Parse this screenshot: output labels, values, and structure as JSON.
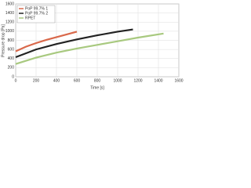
{
  "chart_data": {
    "type": "line",
    "xlabel": "Time [s]",
    "ylabel": "Pressure drop [Pa]",
    "xlim": [
      0,
      1600
    ],
    "xticks": [
      0,
      200,
      400,
      600,
      800,
      1000,
      1200,
      1400,
      1600
    ],
    "ylim": [
      0,
      1600
    ],
    "yticks": [
      0,
      200,
      400,
      600,
      800,
      1000,
      1200,
      1400,
      1600
    ],
    "grid": true,
    "legend": "upper left",
    "series": [
      {
        "name": "PoP 99.7% 1",
        "color": "#d9684a",
        "x": [
          0,
          100,
          200,
          300,
          400,
          500,
          600
        ],
        "values": [
          560,
          660,
          740,
          810,
          870,
          930,
          990
        ]
      },
      {
        "name": "PoP 99.7% 2",
        "color": "#222222",
        "x": [
          0,
          200,
          400,
          600,
          800,
          1000,
          1150
        ],
        "values": [
          430,
          600,
          720,
          820,
          910,
          990,
          1040
        ]
      },
      {
        "name": "RPET",
        "color": "#a8c97f",
        "x": [
          0,
          200,
          400,
          600,
          800,
          1000,
          1200,
          1450
        ],
        "values": [
          280,
          420,
          530,
          620,
          700,
          780,
          860,
          950
        ]
      }
    ]
  }
}
